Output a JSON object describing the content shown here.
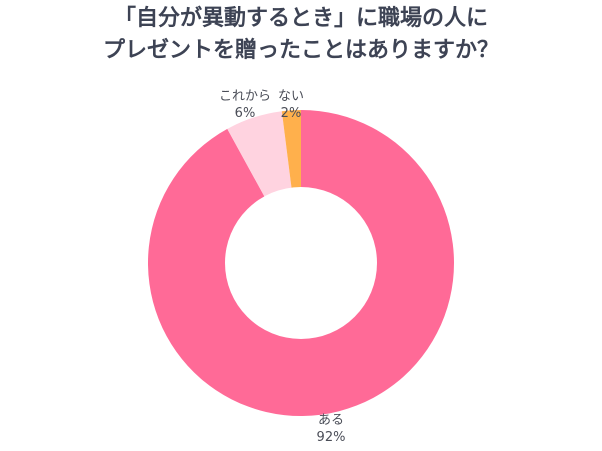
{
  "chart_data": {
    "type": "pie",
    "variant": "donut",
    "title": "「自分が異動するとき」に職場の人にプレゼントを贈ったことはありますか？",
    "title_lines": [
      "「自分が異動するとき」に職場の人に",
      "プレゼントを贈ったことはありますか？"
    ],
    "categories": [
      "ある",
      "これから",
      "ない"
    ],
    "values": [
      92,
      6,
      2
    ],
    "unit": "%",
    "colors": [
      "#FF6A97",
      "#FFD3E0",
      "#FFB04C"
    ],
    "start_angle_deg": 0,
    "direction": "clockwise",
    "labels": [
      {
        "name": "ある",
        "value": "92%"
      },
      {
        "name": "これから",
        "value": "6%"
      },
      {
        "name": "ない",
        "value": "2%"
      }
    ],
    "legend": "none"
  }
}
